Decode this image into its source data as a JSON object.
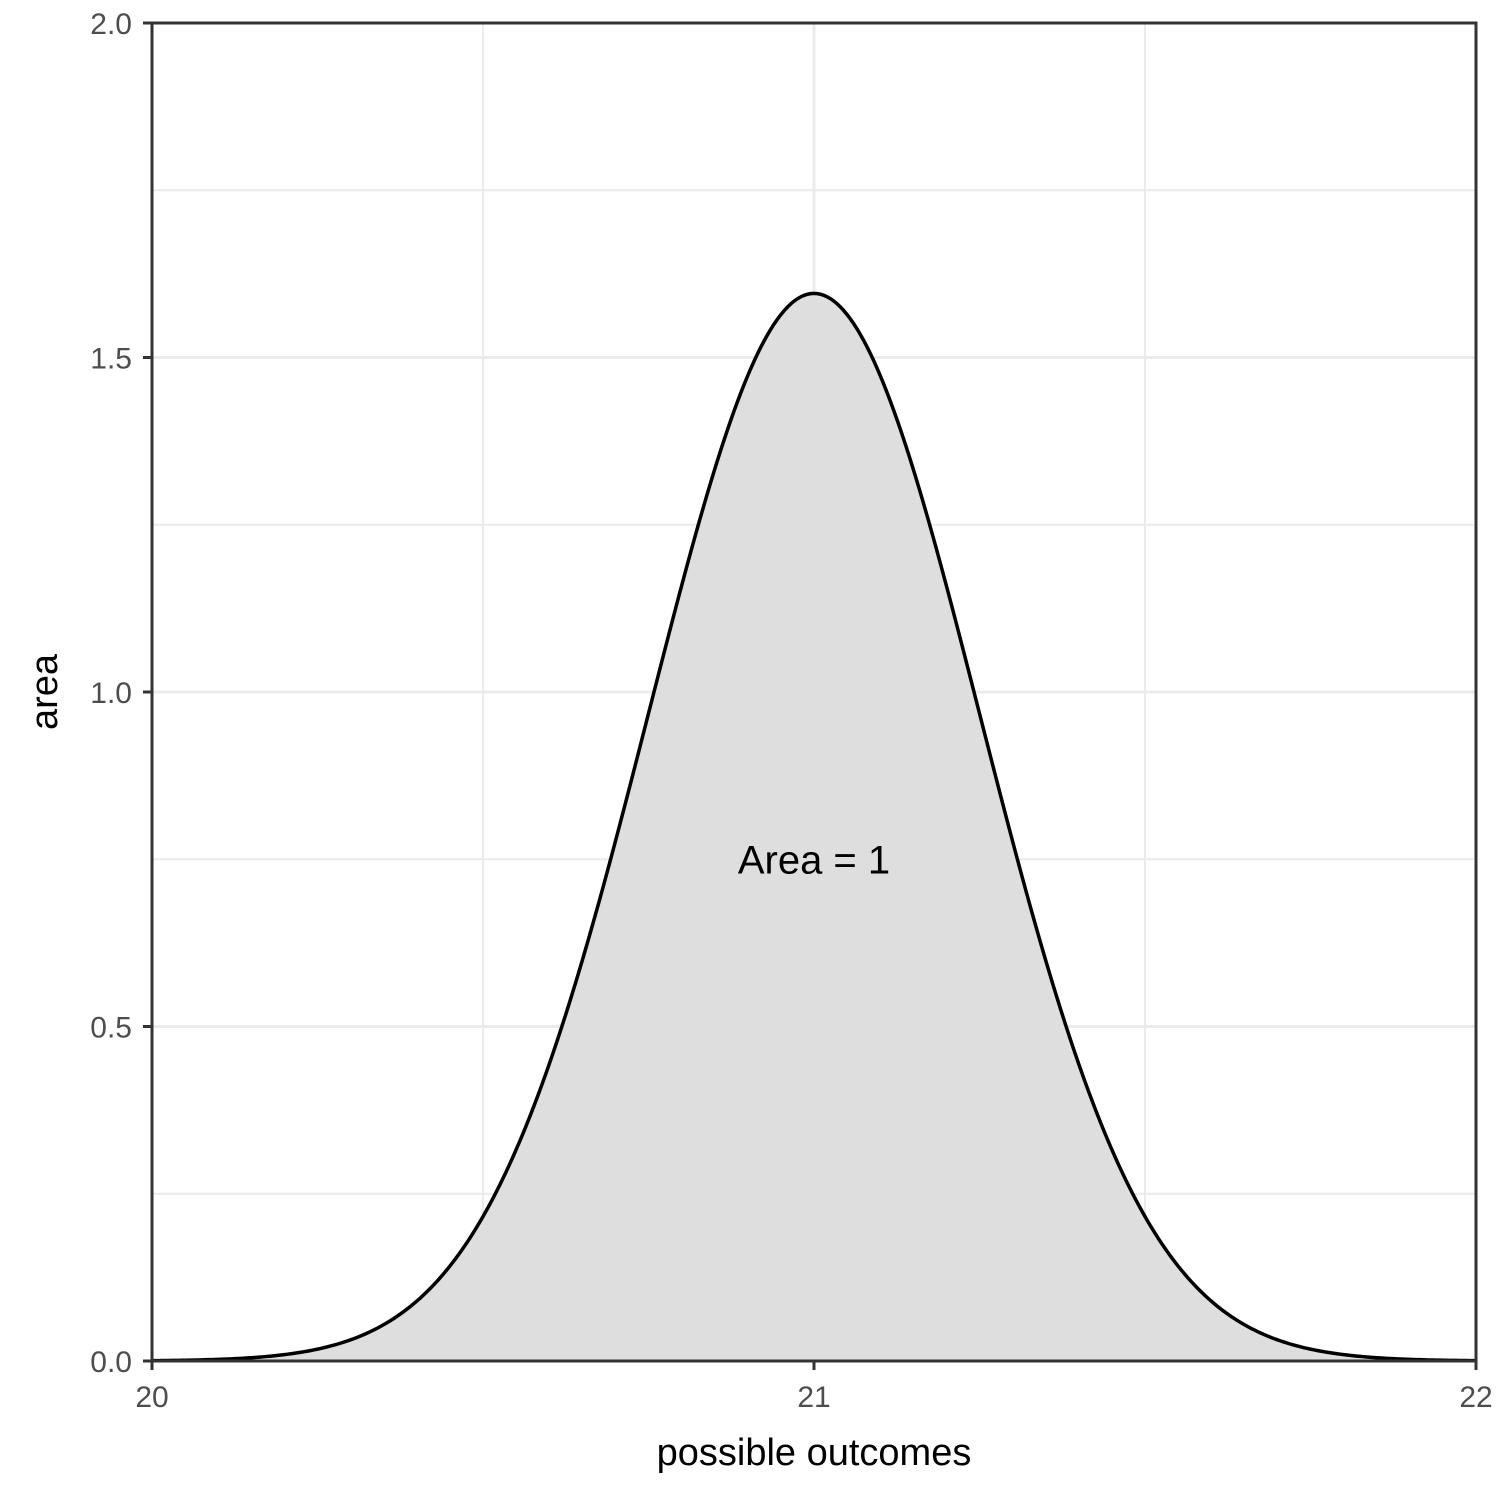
{
  "chart_data": {
    "type": "area",
    "title": "",
    "xlabel": "possible outcomes",
    "ylabel": "area",
    "xlim": [
      20,
      22
    ],
    "ylim": [
      0,
      2
    ],
    "x_ticks": [
      20,
      21,
      22
    ],
    "x_tick_labels": [
      "20",
      "21",
      "22"
    ],
    "y_ticks": [
      0,
      0.5,
      1,
      1.5,
      2
    ],
    "y_tick_labels": [
      "0.0",
      "0.5",
      "1.0",
      "1.5",
      "2.0"
    ],
    "grid": true,
    "series": [
      {
        "distribution": "normal",
        "mean": 21,
        "sd": 0.25,
        "x_range": [
          20,
          22
        ],
        "fill_color": "#dedede",
        "line_color": "#000000"
      }
    ],
    "annotations": [
      {
        "text": "Area = 1",
        "x": 21,
        "y": 0.75
      }
    ]
  },
  "colors": {
    "background": "#ffffff",
    "grid": "#ebebeb",
    "panel_border": "#333333",
    "tick_text": "#4d4d4d",
    "area_fill": "#dedede",
    "curve": "#000000"
  }
}
